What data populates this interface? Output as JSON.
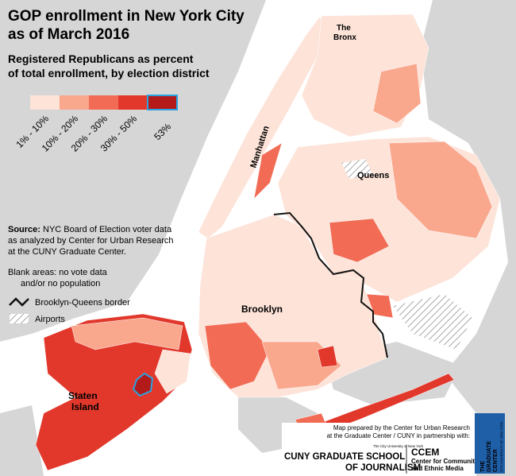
{
  "title_lines": [
    "GOP enrollment in New York City",
    "as of March 2016"
  ],
  "subtitle_lines": [
    "Registered Republicans as percent",
    "of total enrollment, by election district"
  ],
  "legend": {
    "items": [
      {
        "label": "1% - 10%",
        "color": "#fde3d8"
      },
      {
        "label": "10% - 20%",
        "color": "#f9a88e"
      },
      {
        "label": "20% - 30%",
        "color": "#f26c55"
      },
      {
        "label": "30% - 50%",
        "color": "#e2382c"
      },
      {
        "label": "53%",
        "color": "#b31b1b"
      }
    ]
  },
  "source": {
    "label": "Source:",
    "lines": [
      "NYC Board of Election voter data",
      "as analyzed by Center for Urban Research",
      "at the CUNY Graduate Center."
    ]
  },
  "notes": [
    "Blank areas: no vote data",
    "and/or no population"
  ],
  "key": {
    "border": "Brooklyn-Queens border",
    "airports": "Airports"
  },
  "places": {
    "bronx": [
      "The",
      "Bronx"
    ],
    "manhattan": "Manhattan",
    "queens": "Queens",
    "brooklyn": "Brooklyn",
    "staten": [
      "Staten",
      "Island"
    ]
  },
  "credit": [
    "Map prepared by the Center for Urban Research",
    "at the Graduate Center / CUNY in partnership with:"
  ],
  "logos": {
    "cuny_small": "The City University of New York",
    "cuny": [
      "CUNY GRADUATE SCHOOL",
      "OF JOURNALISM"
    ],
    "ccem": [
      "CCEM",
      "Center for Community",
      "and Ethnic Media"
    ],
    "gc": [
      "THE",
      "GRADUATE",
      "CENTER"
    ],
    "gc_small": "CITY UNIVERSITY OF NEW YORK"
  }
}
